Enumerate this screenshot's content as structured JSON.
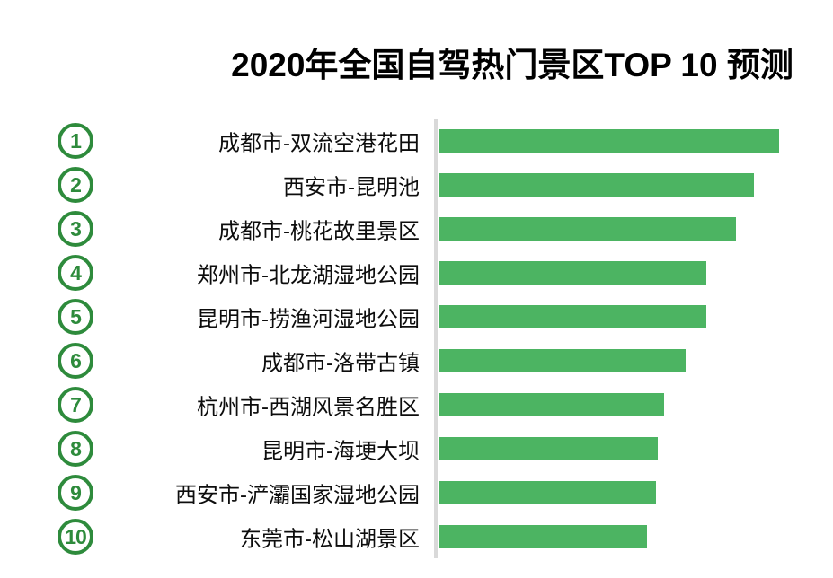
{
  "chart_data": {
    "type": "bar",
    "orientation": "horizontal",
    "title": "2020年全国自驾热门景区TOP 10 预测",
    "value_axis": "no numeric axis or data labels shown; values are relative bar lengths estimated in pixels",
    "categories": [
      "成都市-双流空港花田",
      "西安市-昆明池",
      "成都市-桃花故里景区",
      "郑州市-北龙湖湿地公园",
      "昆明市-捞渔河湿地公园",
      "成都市-洛带古镇",
      "杭州市-西湖风景名胜区",
      "昆明市-海埂大坝",
      "西安市-浐灞国家湿地公园",
      "东莞市-松山湖景区"
    ],
    "values": [
      378,
      350,
      330,
      297,
      297,
      274,
      250,
      243,
      241,
      231
    ],
    "rows": [
      {
        "rank": "1",
        "label": "成都市-双流空港花田",
        "value": 378
      },
      {
        "rank": "2",
        "label": "西安市-昆明池",
        "value": 350
      },
      {
        "rank": "3",
        "label": "成都市-桃花故里景区",
        "value": 330
      },
      {
        "rank": "4",
        "label": "郑州市-北龙湖湿地公园",
        "value": 297
      },
      {
        "rank": "5",
        "label": "昆明市-捞渔河湿地公园",
        "value": 297
      },
      {
        "rank": "6",
        "label": "成都市-洛带古镇",
        "value": 274
      },
      {
        "rank": "7",
        "label": "杭州市-西湖风景名胜区",
        "value": 250
      },
      {
        "rank": "8",
        "label": "昆明市-海埂大坝",
        "value": 243
      },
      {
        "rank": "9",
        "label": "西安市-浐灞国家湿地公园",
        "value": 241
      },
      {
        "rank": "10",
        "label": "东莞市-松山湖景区",
        "value": 231
      }
    ],
    "legend": "none",
    "grid": "off",
    "colors": {
      "bar": "#4cb462",
      "rank_badge": "#2e8b3c",
      "axis_line": "#d9d9d9",
      "title_text": "#000000",
      "label_text": "#0d0d0d",
      "background": "#ffffff"
    }
  }
}
